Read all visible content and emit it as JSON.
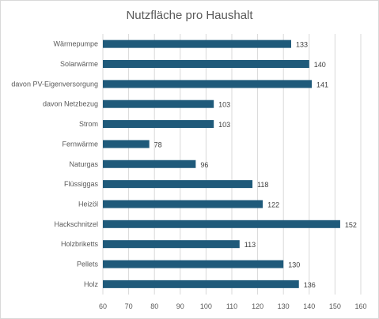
{
  "chart_data": {
    "type": "bar",
    "orientation": "horizontal",
    "title": "Nutzfläche pro Haushalt",
    "categories": [
      "Wärmepumpe",
      "Solarwärme",
      "davon PV-Eigenversorgung",
      "davon Netzbezug",
      "Strom",
      "Fernwärme",
      "Naturgas",
      "Flüssiggas",
      "Heizöl",
      "Hackschnitzel",
      "Holzbriketts",
      "Pellets",
      "Holz"
    ],
    "values": [
      133,
      140,
      141,
      103,
      103,
      78,
      96,
      118,
      122,
      152,
      113,
      130,
      136
    ],
    "xlim": [
      60,
      160
    ],
    "xticks": [
      60,
      70,
      80,
      90,
      100,
      110,
      120,
      130,
      140,
      150,
      160
    ],
    "grid": true,
    "colors": {
      "bar": "#1f5a7a",
      "grid": "#d9d9d9"
    }
  }
}
